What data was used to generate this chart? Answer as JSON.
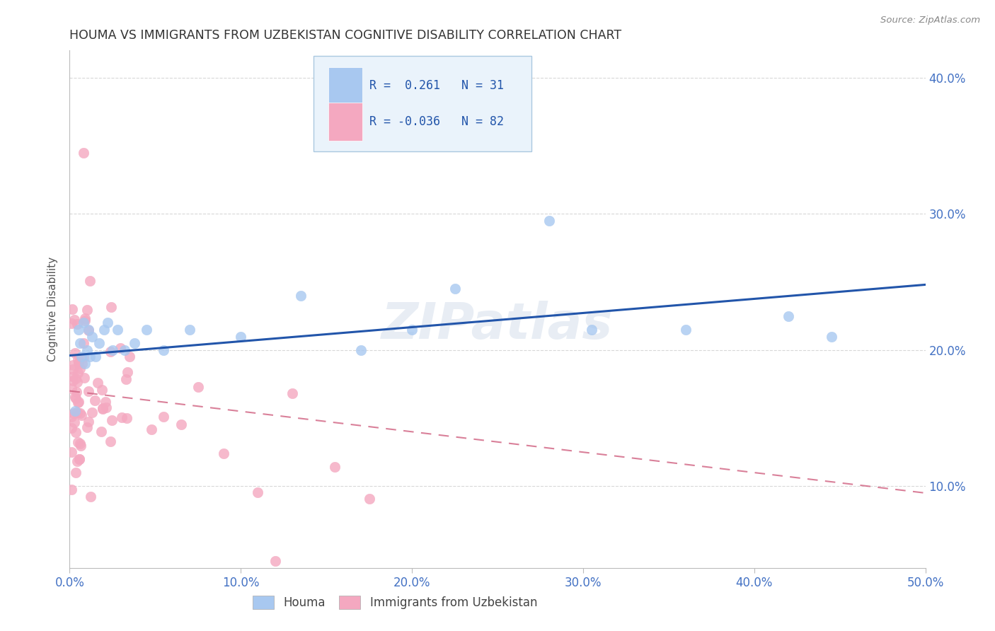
{
  "title": "HOUMA VS IMMIGRANTS FROM UZBEKISTAN COGNITIVE DISABILITY CORRELATION CHART",
  "source": "Source: ZipAtlas.com",
  "ylabel": "Cognitive Disability",
  "xlim": [
    0.0,
    0.5
  ],
  "ylim": [
    0.04,
    0.42
  ],
  "xticks": [
    0.0,
    0.1,
    0.2,
    0.3,
    0.4,
    0.5
  ],
  "yticks": [
    0.1,
    0.2,
    0.3,
    0.4
  ],
  "ytick_labels": [
    "10.0%",
    "20.0%",
    "30.0%",
    "40.0%"
  ],
  "xtick_labels": [
    "0.0%",
    "10.0%",
    "20.0%",
    "30.0%",
    "40.0%",
    "50.0%"
  ],
  "houma_R": 0.261,
  "houma_N": 31,
  "uzbek_R": -0.036,
  "uzbek_N": 82,
  "houma_color": "#a8c8f0",
  "uzbek_color": "#f4a8c0",
  "trend_houma_color": "#2255aa",
  "trend_uzbek_color": "#d06080",
  "watermark": "ZIPatlas",
  "legend_box_color": "#eaf3fb",
  "houma_trend_x0": 0.0,
  "houma_trend_y0": 0.196,
  "houma_trend_x1": 0.5,
  "houma_trend_y1": 0.248,
  "uzbek_trend_x0": 0.0,
  "uzbek_trend_y0": 0.17,
  "uzbek_trend_x1": 0.5,
  "uzbek_trend_y1": 0.095
}
